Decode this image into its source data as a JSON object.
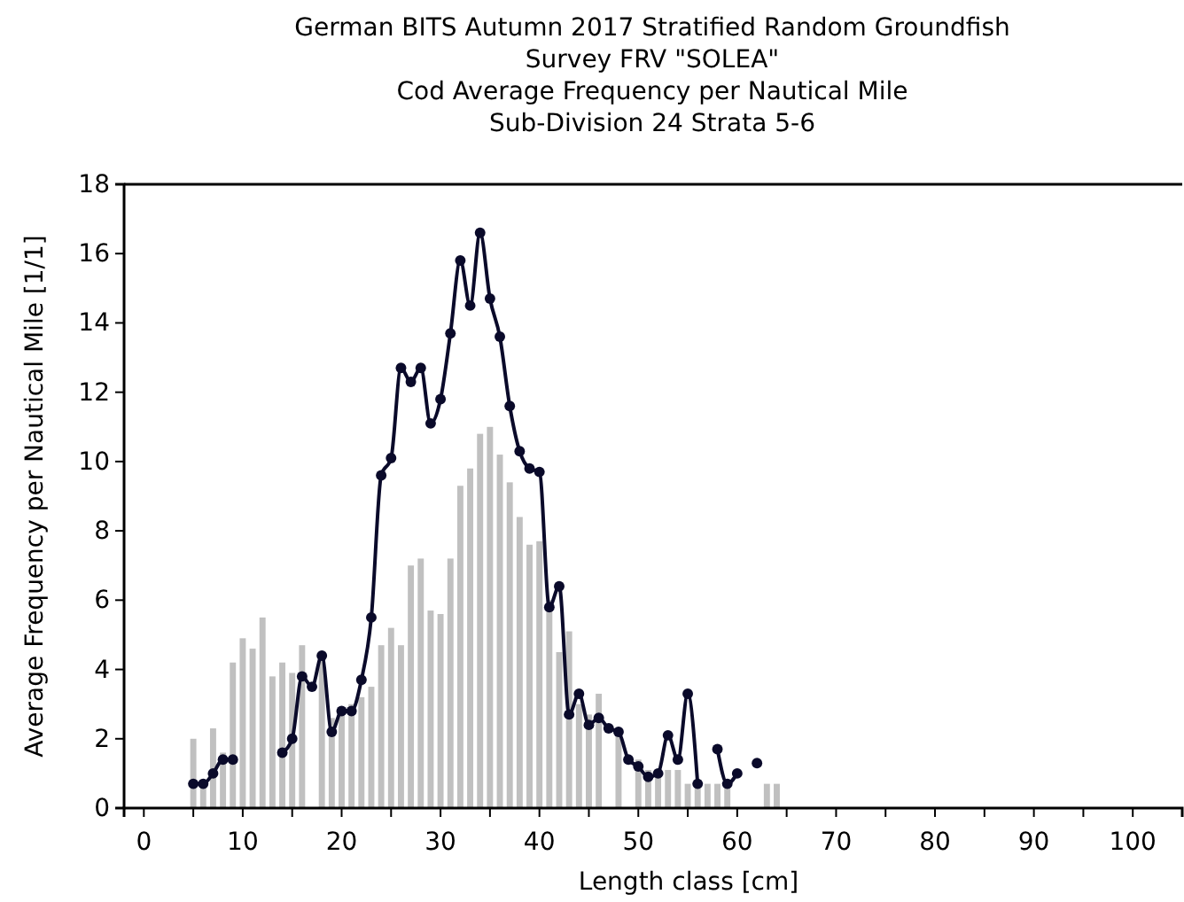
{
  "chart_data": {
    "type": "bar",
    "title": "German BITS  Autumn 2017 Stratified Random Groundfish\nSurvey FRV \"SOLEA\"\nCod Average Frequency per Nautical Mile\nSub-Division 24 Strata 5-6",
    "xlabel": "Length class [cm]",
    "ylabel": "Average Frequency per Nautical Mile [1/1]",
    "x": [
      5,
      6,
      7,
      8,
      9,
      10,
      11,
      12,
      13,
      14,
      15,
      16,
      17,
      18,
      19,
      20,
      21,
      22,
      23,
      24,
      25,
      26,
      27,
      28,
      29,
      30,
      31,
      32,
      33,
      34,
      35,
      36,
      37,
      38,
      39,
      40,
      41,
      42,
      43,
      44,
      45,
      46,
      47,
      48,
      49,
      50,
      51,
      52,
      53,
      54,
      55,
      56,
      57,
      58,
      59,
      60,
      61,
      62,
      63,
      64
    ],
    "series": [
      {
        "color": "#c0c0c0",
        "values": [
          2.0,
          0.7,
          2.3,
          1.6,
          4.2,
          4.9,
          4.6,
          5.5,
          3.8,
          4.2,
          3.9,
          4.7,
          null,
          4.3,
          2.6,
          2.8,
          3.0,
          3.2,
          3.5,
          4.7,
          5.2,
          4.7,
          7.0,
          7.2,
          5.7,
          5.6,
          7.2,
          9.3,
          9.8,
          10.8,
          11.0,
          10.2,
          9.4,
          8.4,
          7.6,
          7.7,
          6.0,
          4.5,
          5.1,
          3.0,
          2.7,
          3.3,
          null,
          2.2,
          null,
          1.4,
          1.1,
          1.0,
          1.1,
          1.1,
          0.7,
          0.7,
          0.7,
          0.7,
          0.7,
          null,
          null,
          null,
          0.7,
          0.7
        ]
      },
      {
        "type": "line",
        "color": "#0a0a2a",
        "marker": "circle",
        "values": [
          0.7,
          0.7,
          1.0,
          1.4,
          1.4,
          null,
          null,
          null,
          null,
          1.6,
          2.0,
          3.8,
          3.5,
          4.4,
          2.2,
          2.8,
          2.8,
          3.7,
          5.5,
          9.6,
          10.1,
          12.7,
          12.3,
          12.7,
          11.1,
          11.8,
          13.7,
          15.8,
          14.5,
          16.6,
          14.7,
          13.6,
          11.6,
          10.3,
          9.8,
          9.7,
          5.8,
          6.4,
          2.7,
          3.3,
          2.4,
          2.6,
          2.3,
          2.2,
          1.4,
          1.2,
          0.9,
          1.0,
          2.1,
          1.4,
          3.3,
          0.7,
          null,
          1.7,
          0.7,
          1.0,
          null,
          1.3,
          null,
          null
        ]
      }
    ],
    "xlim": [
      -2,
      105
    ],
    "xticks": [
      0,
      {
        "value": 5,
        "label": null
      },
      10,
      {
        "value": 15,
        "label": null
      },
      20,
      {
        "value": 25,
        "label": null
      },
      30,
      {
        "value": 35,
        "label": null
      },
      40,
      {
        "value": 45,
        "label": null
      },
      50,
      {
        "value": 55,
        "label": null
      },
      60,
      {
        "value": 65,
        "label": null
      },
      70,
      {
        "value": 75,
        "label": null
      },
      80,
      {
        "value": 85,
        "label": null
      },
      90,
      {
        "value": 95,
        "label": null
      },
      100
    ],
    "ylim": [
      0,
      18
    ],
    "yticks": [
      0,
      2,
      4,
      6,
      8,
      10,
      12,
      14,
      16,
      18
    ]
  }
}
